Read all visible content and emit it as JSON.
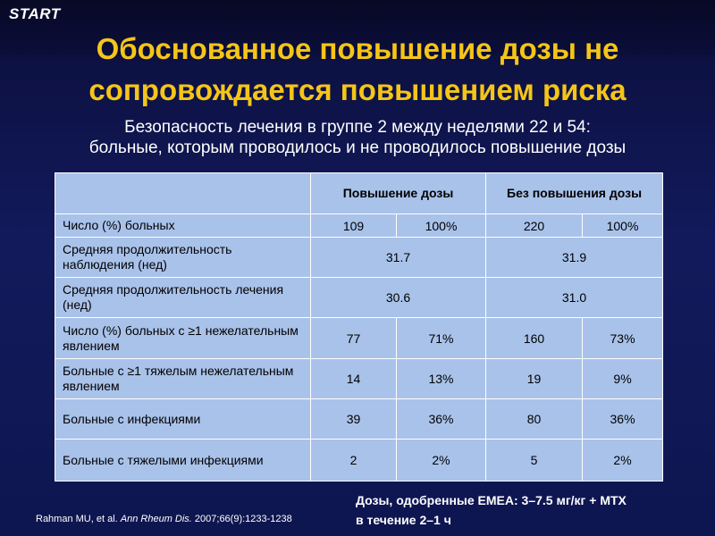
{
  "logo": "START",
  "title": {
    "line1": "Обоснованное повышение дозы не",
    "line2": "сопровождается повышением риска"
  },
  "subtitle": {
    "line1": "Безопасность лечения в группе 2 между неделями 22 и 54:",
    "line2": "больные, которым проводилось и не проводилось повышение дозы"
  },
  "table": {
    "header": {
      "col1": "",
      "escalation": "Повышение дозы",
      "no_escalation": "Без повышения дозы"
    },
    "rows": [
      {
        "label": "Число (%) больных",
        "a": "109",
        "a_pct": "100%",
        "b": "220",
        "b_pct": "100%"
      },
      {
        "label": "Средняя продолжительность наблюдения (нед)",
        "a": "31.7",
        "b": "31.9"
      },
      {
        "label": "Средняя продолжительность лечения (нед)",
        "a": "30.6",
        "b": "31.0"
      },
      {
        "label": "Число (%) больных с ≥1 нежелательным явлением",
        "a": "77",
        "a_pct": "71%",
        "b": "160",
        "b_pct": "73%"
      },
      {
        "label": "Больные с ≥1 тяжелым нежелательным явлением",
        "a": "14",
        "a_pct": "13%",
        "b": "19",
        "b_pct": "9%"
      },
      {
        "label": "Больные с инфекциями",
        "a": "39",
        "a_pct": "36%",
        "b": "80",
        "b_pct": "36%"
      },
      {
        "label": "Больные с тяжелыми инфекциями",
        "a": "2",
        "a_pct": "2%",
        "b": "5",
        "b_pct": "2%"
      }
    ]
  },
  "footer": {
    "citation_authors": "Rahman MU, et al. ",
    "citation_journal": "Ann Rheum Dis.",
    "citation_rest": " 2007;66(9):1233-1238",
    "dose_line1": "Дозы, одобренные EMEA: 3–7.5 мг/кг + MTX",
    "dose_line2": "в течение 2–1 ч"
  }
}
